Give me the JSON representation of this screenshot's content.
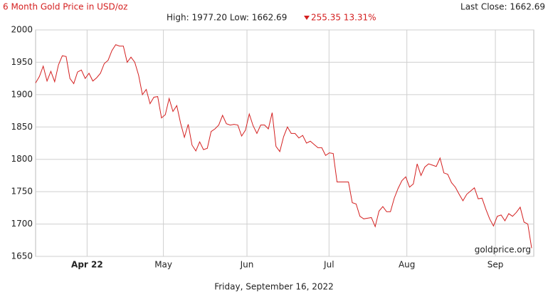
{
  "chart_data": {
    "type": "line",
    "title": "6 Month Gold Price in USD/oz",
    "last_close": "Last Close: 1662.69",
    "stats": "High: 1977.20 Low: 1662.69",
    "change": "255.35 13.31%",
    "watermark": "goldprice.org",
    "date_label": "Friday, September 16, 2022",
    "color": "#d42020",
    "grid": true,
    "values": [
      1918,
      1928,
      1944,
      1921,
      1936,
      1920,
      1946,
      1960,
      1959,
      1925,
      1917,
      1935,
      1938,
      1925,
      1933,
      1921,
      1926,
      1933,
      1948,
      1953,
      1968,
      1977.2,
      1975,
      1975,
      1950,
      1958,
      1950,
      1930,
      1900,
      1908,
      1886,
      1896,
      1897,
      1864,
      1869,
      1894,
      1874,
      1883,
      1856,
      1834,
      1854,
      1822,
      1813,
      1827,
      1815,
      1817,
      1843,
      1847,
      1853,
      1868,
      1855,
      1853,
      1854,
      1853,
      1836,
      1845,
      1870,
      1852,
      1840,
      1853,
      1853,
      1847,
      1872,
      1820,
      1812,
      1835,
      1850,
      1840,
      1840,
      1833,
      1837,
      1825,
      1828,
      1823,
      1818,
      1818,
      1806,
      1810,
      1809,
      1765,
      1765,
      1765,
      1765,
      1733,
      1731,
      1712,
      1708,
      1709,
      1710,
      1696,
      1720,
      1727,
      1719,
      1719,
      1740,
      1755,
      1767,
      1773,
      1757,
      1762,
      1793,
      1775,
      1788,
      1793,
      1791,
      1789,
      1802,
      1779,
      1777,
      1764,
      1757,
      1746,
      1736,
      1746,
      1751,
      1756,
      1739,
      1740,
      1723,
      1708,
      1697,
      1712,
      1714,
      1705,
      1716,
      1712,
      1718,
      1726,
      1703,
      1700,
      1662.69
    ],
    "xlim": [
      0,
      130
    ],
    "xticks": [
      {
        "value": 13.5,
        "label": "Apr 22"
      },
      {
        "value": 33.5,
        "label": "May"
      },
      {
        "value": 55.4,
        "label": "Jun"
      },
      {
        "value": 76.9,
        "label": "Jul"
      },
      {
        "value": 97.3,
        "label": "Aug"
      },
      {
        "value": 120.5,
        "label": "Sep"
      }
    ],
    "ylim": [
      1650,
      2000
    ],
    "yticks": [
      1650,
      1700,
      1750,
      1800,
      1850,
      1900,
      1950,
      2000
    ]
  }
}
